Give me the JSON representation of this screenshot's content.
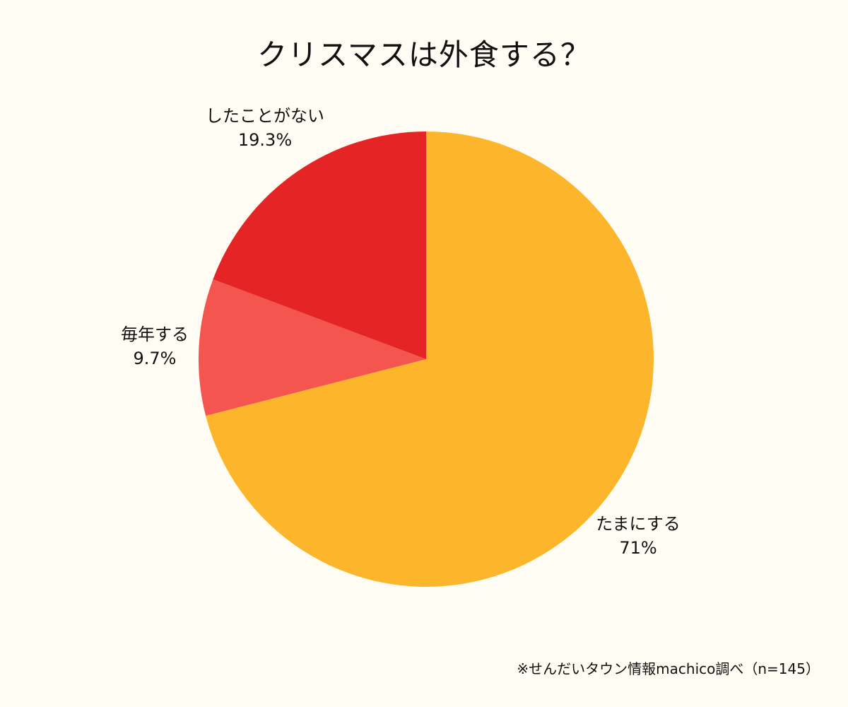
{
  "chart_data": {
    "type": "pie",
    "title": "クリスマスは外食する？",
    "slices": [
      {
        "label": "たまにする",
        "value": 71,
        "value_label": "71%",
        "color": "#FDB62B"
      },
      {
        "label": "毎年する",
        "value": 9.7,
        "value_label": "9.7%",
        "color": "#F4564F"
      },
      {
        "label": "したことがない",
        "value": 19.3,
        "value_label": "19.3%",
        "color": "#E52425"
      }
    ],
    "start": "top",
    "direction": "clockwise"
  },
  "footer": {
    "source": "※せんだいタウン情報machico調べ（n=145）"
  }
}
